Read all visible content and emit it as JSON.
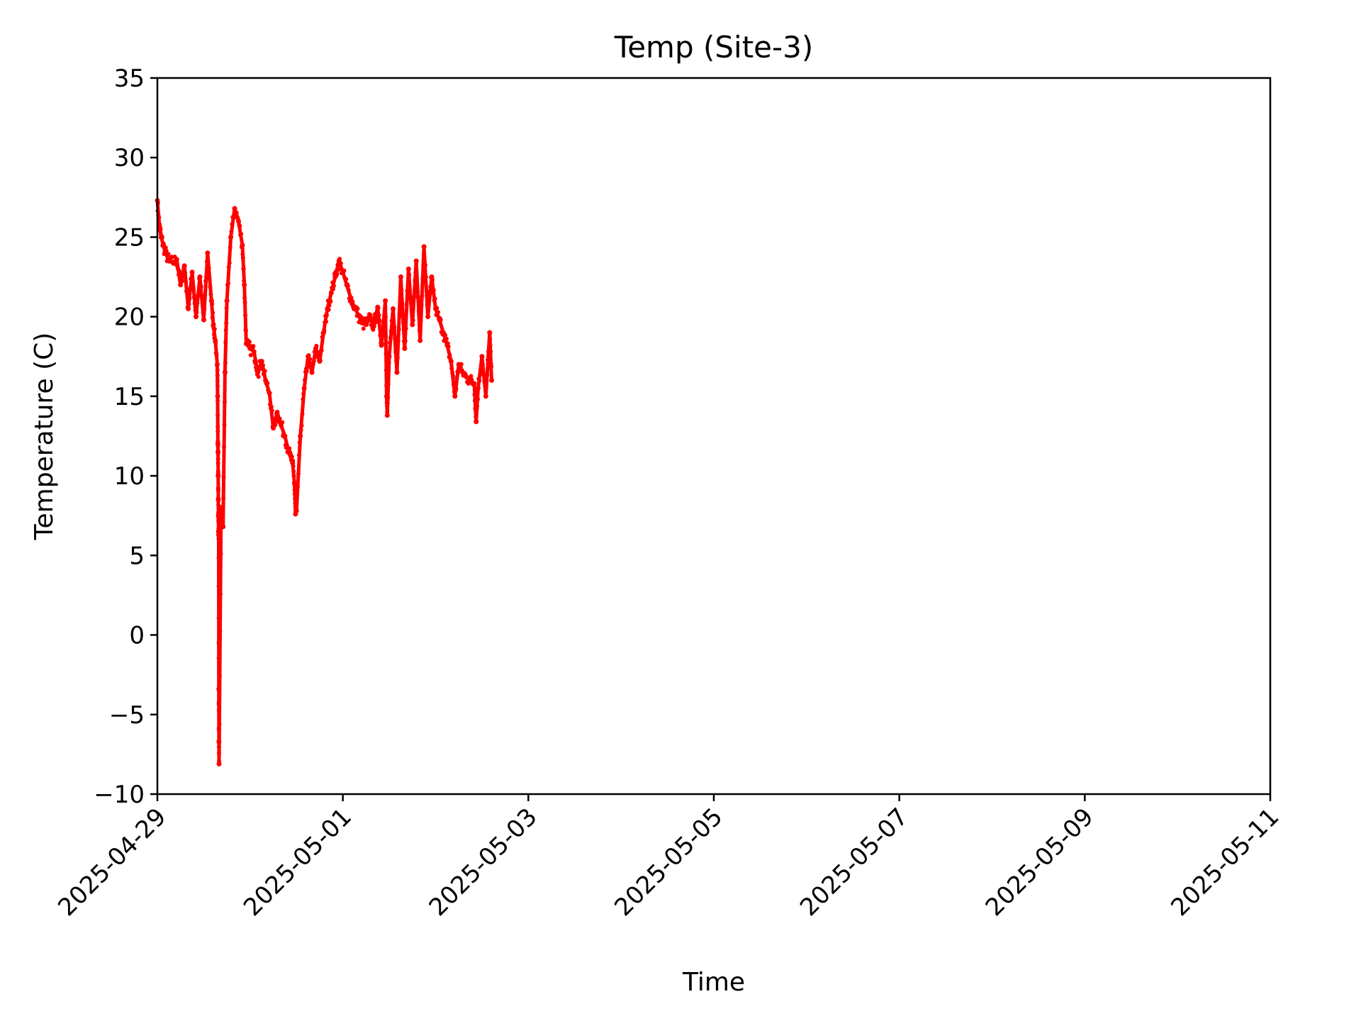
{
  "chart_data": {
    "type": "scatter",
    "title": "Temp (Site-3)",
    "xlabel": "Time",
    "ylabel": "Temperature (C)",
    "xlim": [
      "2025-04-29",
      "2025-05-11"
    ],
    "ylim": [
      -10,
      35
    ],
    "x_ticks": [
      "2025-04-29",
      "2025-05-01",
      "2025-05-03",
      "2025-05-05",
      "2025-05-07",
      "2025-05-09",
      "2025-05-11"
    ],
    "y_ticks": [
      -10,
      -5,
      0,
      5,
      10,
      15,
      20,
      25,
      30,
      35
    ],
    "y_tick_labels": [
      "−10",
      "−5",
      "0",
      "5",
      "10",
      "15",
      "20",
      "25",
      "30",
      "35"
    ],
    "grid": false,
    "legend": "none",
    "marker_color": "#ff0000",
    "series": [
      {
        "values": [
          [
            "2025-04-29T00:00",
            27.3
          ],
          [
            "2025-04-29T00:30",
            25.8
          ],
          [
            "2025-04-29T01:00",
            25.0
          ],
          [
            "2025-04-29T01:30",
            24.5
          ],
          [
            "2025-04-29T02:00",
            24.1
          ],
          [
            "2025-04-29T03:00",
            23.5
          ],
          [
            "2025-04-29T04:00",
            23.4
          ],
          [
            "2025-04-29T05:00",
            23.6
          ],
          [
            "2025-04-29T06:00",
            22.0
          ],
          [
            "2025-04-29T07:00",
            23.2
          ],
          [
            "2025-04-29T08:00",
            20.5
          ],
          [
            "2025-04-29T09:00",
            22.8
          ],
          [
            "2025-04-29T10:00",
            20.0
          ],
          [
            "2025-04-29T11:00",
            22.5
          ],
          [
            "2025-04-29T12:00",
            19.8
          ],
          [
            "2025-04-29T13:00",
            24.0
          ],
          [
            "2025-04-29T14:00",
            21.0
          ],
          [
            "2025-04-29T14:30",
            19.5
          ],
          [
            "2025-04-29T15:00",
            18.5
          ],
          [
            "2025-04-29T15:30",
            17.0
          ],
          [
            "2025-04-29T15:36",
            15.0
          ],
          [
            "2025-04-29T15:40",
            12.0
          ],
          [
            "2025-04-29T15:42",
            11.5
          ],
          [
            "2025-04-29T15:44",
            10.0
          ],
          [
            "2025-04-29T15:46",
            8.5
          ],
          [
            "2025-04-29T15:48",
            7.5
          ],
          [
            "2025-04-29T15:50",
            6.5
          ],
          [
            "2025-04-29T15:52",
            6.3
          ],
          [
            "2025-04-29T15:54",
            -3.4
          ],
          [
            "2025-04-29T15:56",
            -6.7
          ],
          [
            "2025-04-29T15:58",
            -8.1
          ],
          [
            "2025-04-29T16:30",
            8.0
          ],
          [
            "2025-04-29T17:00",
            6.8
          ],
          [
            "2025-04-29T17:30",
            16.5
          ],
          [
            "2025-04-29T18:00",
            21.0
          ],
          [
            "2025-04-29T19:00",
            25.0
          ],
          [
            "2025-04-29T20:00",
            26.8
          ],
          [
            "2025-04-29T21:00",
            26.0
          ],
          [
            "2025-04-29T22:00",
            24.5
          ],
          [
            "2025-04-29T22:30",
            22.0
          ],
          [
            "2025-04-29T23:00",
            18.3
          ],
          [
            "2025-04-30T00:00",
            18.0
          ],
          [
            "2025-04-30T01:00",
            17.8
          ],
          [
            "2025-04-30T02:00",
            16.5
          ],
          [
            "2025-04-30T03:00",
            17.2
          ],
          [
            "2025-04-30T04:00",
            16.0
          ],
          [
            "2025-04-30T05:00",
            15.2
          ],
          [
            "2025-04-30T06:00",
            13.0
          ],
          [
            "2025-04-30T07:00",
            14.0
          ],
          [
            "2025-04-30T08:00",
            13.2
          ],
          [
            "2025-04-30T09:00",
            12.5
          ],
          [
            "2025-04-30T10:00",
            11.5
          ],
          [
            "2025-04-30T11:00",
            10.8
          ],
          [
            "2025-04-30T11:30",
            9.5
          ],
          [
            "2025-04-30T11:45",
            7.6
          ],
          [
            "2025-04-30T12:00",
            7.8
          ],
          [
            "2025-04-30T13:00",
            12.5
          ],
          [
            "2025-04-30T14:00",
            15.5
          ],
          [
            "2025-04-30T15:00",
            17.5
          ],
          [
            "2025-04-30T16:00",
            16.5
          ],
          [
            "2025-04-30T17:00",
            18.0
          ],
          [
            "2025-04-30T18:00",
            17.2
          ],
          [
            "2025-04-30T19:00",
            19.0
          ],
          [
            "2025-04-30T20:00",
            20.5
          ],
          [
            "2025-04-30T21:00",
            21.5
          ],
          [
            "2025-04-30T22:00",
            22.5
          ],
          [
            "2025-04-30T23:00",
            23.5
          ],
          [
            "2025-05-01T00:00",
            22.8
          ],
          [
            "2025-05-01T01:00",
            22.0
          ],
          [
            "2025-05-01T02:00",
            21.2
          ],
          [
            "2025-05-01T03:00",
            20.6
          ],
          [
            "2025-05-01T04:00",
            20.1
          ],
          [
            "2025-05-01T05:00",
            19.6
          ],
          [
            "2025-05-01T06:00",
            19.5
          ],
          [
            "2025-05-01T07:00",
            19.9
          ],
          [
            "2025-05-01T08:00",
            19.4
          ],
          [
            "2025-05-01T09:00",
            20.6
          ],
          [
            "2025-05-01T10:00",
            18.2
          ],
          [
            "2025-05-01T11:00",
            21.0
          ],
          [
            "2025-05-01T11:20",
            15.0
          ],
          [
            "2025-05-01T11:30",
            13.8
          ],
          [
            "2025-05-01T12:00",
            17.5
          ],
          [
            "2025-05-01T13:00",
            20.5
          ],
          [
            "2025-05-01T14:00",
            16.5
          ],
          [
            "2025-05-01T15:00",
            22.5
          ],
          [
            "2025-05-01T16:00",
            18.0
          ],
          [
            "2025-05-01T17:00",
            23.0
          ],
          [
            "2025-05-01T18:00",
            19.5
          ],
          [
            "2025-05-01T19:00",
            23.5
          ],
          [
            "2025-05-01T20:00",
            18.5
          ],
          [
            "2025-05-01T21:00",
            24.4
          ],
          [
            "2025-05-01T22:00",
            20.0
          ],
          [
            "2025-05-01T23:00",
            22.5
          ],
          [
            "2025-05-02T00:00",
            20.5
          ],
          [
            "2025-05-02T01:00",
            19.8
          ],
          [
            "2025-05-02T02:00",
            19.0
          ],
          [
            "2025-05-02T03:00",
            18.2
          ],
          [
            "2025-05-02T04:00",
            17.2
          ],
          [
            "2025-05-02T05:00",
            15.0
          ],
          [
            "2025-05-02T06:00",
            17.0
          ],
          [
            "2025-05-02T07:00",
            16.5
          ],
          [
            "2025-05-02T08:00",
            16.2
          ],
          [
            "2025-05-02T09:00",
            16.0
          ],
          [
            "2025-05-02T10:00",
            15.8
          ],
          [
            "2025-05-02T10:30",
            13.4
          ],
          [
            "2025-05-02T11:00",
            15.5
          ],
          [
            "2025-05-02T12:00",
            17.5
          ],
          [
            "2025-05-02T13:00",
            15.0
          ],
          [
            "2025-05-02T14:00",
            19.0
          ],
          [
            "2025-05-02T14:30",
            16.0
          ]
        ]
      }
    ]
  }
}
